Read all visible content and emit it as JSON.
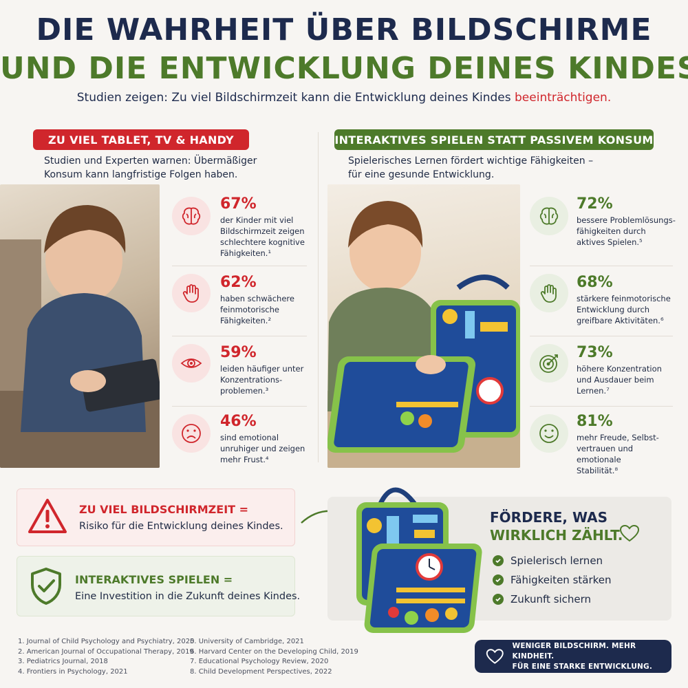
{
  "header": {
    "title_line1": "DIE WAHRHEIT ÜBER BILDSCHIRME",
    "title_line2": "UND DIE ENTWICKLUNG DEINES KINDES",
    "subtitle_main": "Studien zeigen: Zu viel Bildschirmzeit kann die Entwicklung deines Kindes ",
    "subtitle_highlight": "beeinträchtigen."
  },
  "colors": {
    "red": "#d0262c",
    "green": "#4d7a2a",
    "navy": "#1d2a4d"
  },
  "left": {
    "pill": "ZU VIEL TABLET, TV & HANDY",
    "intro_line1": "Studien und Experten warnen: Übermäßiger",
    "intro_line2": "Konsum kann langfristige Folgen haben.",
    "stats": [
      {
        "icon": "brain-icon",
        "pct": "67%",
        "lines": [
          "der Kinder mit viel",
          "Bildschirmzeit zeigen",
          "schlechtere kognitive",
          "Fähigkeiten.¹"
        ]
      },
      {
        "icon": "hand-icon",
        "pct": "62%",
        "lines": [
          "haben schwächere",
          "feinmotorische",
          "Fähigkeiten.²"
        ]
      },
      {
        "icon": "eye-icon",
        "pct": "59%",
        "lines": [
          "leiden häufiger unter",
          "Konzentrations-",
          "problemen.³"
        ]
      },
      {
        "icon": "sad-face-icon",
        "pct": "46%",
        "lines": [
          "sind emotional",
          "unruhiger und zeigen",
          "mehr Frust.⁴"
        ]
      }
    ]
  },
  "right": {
    "pill": "INTERAKTIVES SPIELEN STATT PASSIVEM KONSUM",
    "intro_line1": "Spielerisches Lernen fördert wichtige Fähigkeiten –",
    "intro_line2": "für eine gesunde Entwicklung.",
    "stats": [
      {
        "icon": "brain-icon",
        "pct": "72%",
        "lines": [
          "bessere Problemlösungs-",
          "fähigkeiten durch",
          "aktives Spielen.⁵"
        ]
      },
      {
        "icon": "hand-icon",
        "pct": "68%",
        "lines": [
          "stärkere feinmotorische",
          "Entwicklung durch",
          "greifbare Aktivitäten.⁶"
        ]
      },
      {
        "icon": "target-icon",
        "pct": "73%",
        "lines": [
          "höhere Konzentration",
          "und Ausdauer beim",
          "Lernen.⁷"
        ]
      },
      {
        "icon": "smile-icon",
        "pct": "81%",
        "lines": [
          "mehr Freude, Selbst-",
          "vertrauen und emotionale",
          "Stabilität.⁸"
        ]
      }
    ]
  },
  "warning_box": {
    "title": "ZU VIEL BILDSCHIRMZEIT =",
    "text": "Risiko für die Entwicklung deines Kindes."
  },
  "play_box": {
    "title": "INTERAKTIVES SPIELEN =",
    "text": "Eine Investition in die Zukunft deines Kindes."
  },
  "panel": {
    "title_line1": "FÖRDERE, WAS",
    "title_line2": "WIRKLICH ZÄHLT.",
    "checks": [
      "Spielerisch lernen",
      "Fähigkeiten stärken",
      "Zukunft sichern"
    ]
  },
  "references_left": [
    "1.  Journal of Child Psychology and Psychiatry, 2020",
    "2.  American Journal of Occupational Therapy, 2019",
    "3.  Pediatrics Journal, 2018",
    "4.  Frontiers in Psychology, 2021"
  ],
  "references_right": [
    "5.  University of Cambridge, 2021",
    "6.  Harvard Center on the Developing Child, 2019",
    "7.  Educational Psychology Review, 2020",
    "8.  Child Development Perspectives, 2022"
  ],
  "cta": {
    "line1": "WENIGER BILDSCHIRM. MEHR KINDHEIT.",
    "line2": "FÜR EINE STARKE ENTWICKLUNG."
  }
}
